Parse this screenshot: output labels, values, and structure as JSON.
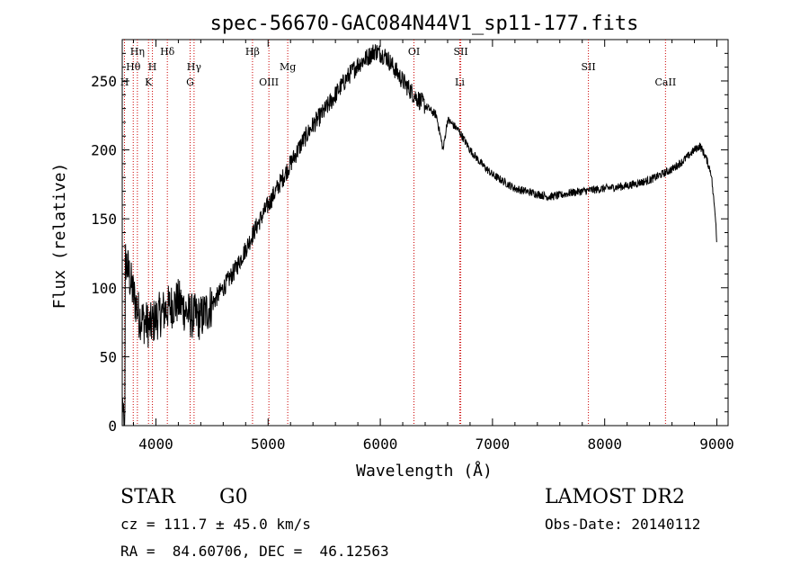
{
  "chart_data": {
    "type": "line",
    "title": "spec-56670-GAC084N44V1_sp11-177.fits",
    "xlabel": "Wavelength (Å)",
    "ylabel": "Flux (relative)",
    "xlim": [
      3700,
      9100
    ],
    "ylim": [
      0,
      280
    ],
    "xticks": [
      4000,
      5000,
      6000,
      7000,
      8000,
      9000
    ],
    "yticks": [
      0,
      50,
      100,
      150,
      200,
      250
    ],
    "line_color": "#000000",
    "marker_color": "#cc0000",
    "spectrum_anchors": {
      "x": [
        3700,
        3730,
        3760,
        3800,
        3850,
        3900,
        3950,
        4000,
        4100,
        4200,
        4300,
        4400,
        4500,
        4600,
        4700,
        4800,
        4900,
        5000,
        5100,
        5200,
        5300,
        5400,
        5500,
        5600,
        5700,
        5800,
        5900,
        5950,
        6000,
        6050,
        6100,
        6200,
        6300,
        6400,
        6500,
        6560,
        6600,
        6700,
        6800,
        6900,
        7000,
        7100,
        7200,
        7300,
        7400,
        7500,
        7600,
        7700,
        7800,
        7900,
        8000,
        8100,
        8200,
        8300,
        8400,
        8500,
        8600,
        8700,
        8800,
        8850,
        8900,
        8950,
        8970,
        8990,
        9000
      ],
      "y": [
        5,
        120,
        110,
        95,
        80,
        75,
        72,
        78,
        85,
        90,
        80,
        78,
        88,
        100,
        112,
        128,
        145,
        160,
        175,
        190,
        205,
        218,
        228,
        240,
        252,
        262,
        268,
        272,
        270,
        268,
        262,
        250,
        240,
        232,
        225,
        200,
        222,
        214,
        200,
        190,
        182,
        177,
        172,
        170,
        168,
        166,
        167,
        169,
        170,
        171,
        172,
        173,
        174,
        176,
        178,
        182,
        186,
        192,
        200,
        203,
        195,
        183,
        165,
        150,
        130
      ]
    },
    "lines": [
      {
        "label": "Hη",
        "x": 3835,
        "row": 0
      },
      {
        "label": "Hδ",
        "x": 4102,
        "row": 0
      },
      {
        "label": "Hβ",
        "x": 4861,
        "row": 0
      },
      {
        "label": "OI",
        "x": 6300,
        "row": 0
      },
      {
        "label": "SII",
        "x": 6717,
        "row": 0
      },
      {
        "label": "Hθ",
        "x": 3798,
        "row": 1
      },
      {
        "label": "H",
        "x": 3969,
        "row": 1
      },
      {
        "label": "Hγ",
        "x": 4340,
        "row": 1
      },
      {
        "label": "Mg",
        "x": 5175,
        "row": 1
      },
      {
        "label": "SII",
        "x": 7855,
        "row": 1
      },
      {
        "label": "H",
        "x": 3720,
        "row": 2
      },
      {
        "label": "K",
        "x": 3934,
        "row": 2
      },
      {
        "label": "G",
        "x": 4305,
        "row": 2
      },
      {
        "label": "OIII",
        "x": 5007,
        "row": 2
      },
      {
        "label": "Li",
        "x": 6708,
        "row": 2
      },
      {
        "label": "CaII",
        "x": 8542,
        "row": 2
      }
    ]
  },
  "footer": {
    "object_type": "STAR",
    "subclass": "G0",
    "survey": "LAMOST DR2",
    "redshift": "cz = 111.7 ± 45.0 km/s",
    "obs_date": "Obs-Date: 20140112",
    "coords": "RA =  84.60706, DEC =  46.12563"
  }
}
